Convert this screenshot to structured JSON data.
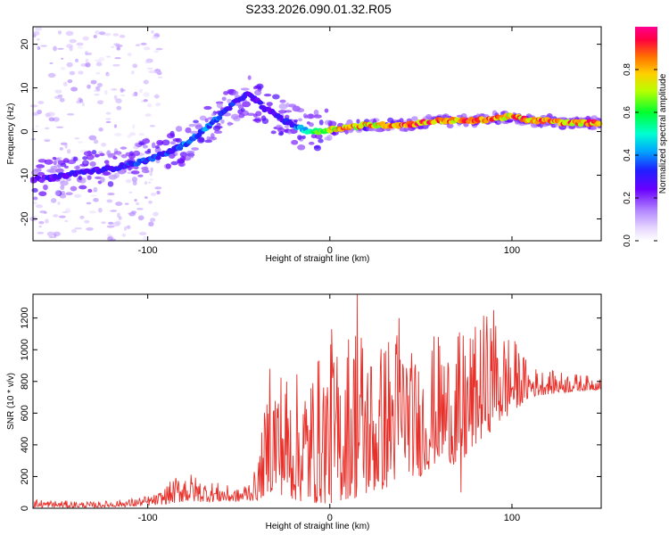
{
  "title": "S233.2026.090.01.32.R05",
  "chart_data": [
    {
      "type": "heatmap",
      "title": "S233.2026.090.01.32.R05",
      "xlabel": "Height of straight line (km)",
      "ylabel": "Frequency (Hz)",
      "xlim": [
        -163,
        149
      ],
      "ylim": [
        -25,
        24
      ],
      "x_ticks": [
        -100,
        0,
        100
      ],
      "y_ticks": [
        -20,
        -10,
        0,
        10,
        20
      ],
      "colorbar": {
        "label": "Normalized spectral amplitude",
        "range": [
          0.0,
          1.0
        ],
        "ticks": [
          0.0,
          0.2,
          0.4,
          0.6,
          0.8
        ],
        "tick_labels": [
          "0.0",
          "0.2",
          "0.4",
          "0.6",
          "0.8"
        ]
      },
      "ridge": {
        "x": [
          -163,
          -150,
          -140,
          -130,
          -120,
          -110,
          -100,
          -90,
          -80,
          -70,
          -62,
          -55,
          -50,
          -45,
          -40,
          -35,
          -30,
          -25,
          -20,
          -15,
          -10,
          -5,
          0,
          10,
          20,
          30,
          40,
          50,
          60,
          70,
          80,
          90,
          100,
          110,
          120,
          130,
          140,
          149
        ],
        "y": [
          -11,
          -10.5,
          -9.5,
          -9,
          -8.5,
          -7.5,
          -6.5,
          -5,
          -3,
          0,
          3,
          5.5,
          7.5,
          8.5,
          7,
          5,
          4,
          2.5,
          1.5,
          0.5,
          0,
          0,
          0.5,
          1,
          1.5,
          1.5,
          1.5,
          2,
          2.5,
          2.5,
          2.5,
          3,
          3.5,
          2.5,
          2.5,
          2,
          2,
          2
        ],
        "amplitude": [
          0.25,
          0.3,
          0.3,
          0.3,
          0.3,
          0.35,
          0.35,
          0.35,
          0.4,
          0.4,
          0.4,
          0.35,
          0.3,
          0.3,
          0.3,
          0.3,
          0.3,
          0.3,
          0.35,
          0.5,
          0.6,
          0.7,
          0.8,
          0.85,
          0.85,
          0.85,
          0.9,
          0.9,
          0.9,
          0.9,
          0.9,
          0.9,
          0.85,
          0.9,
          0.9,
          0.9,
          0.9,
          0.9
        ]
      }
    },
    {
      "type": "line",
      "xlabel": "Height of straight line (km)",
      "ylabel": "SNR (10 * v/v)",
      "xlim": [
        -163,
        149
      ],
      "ylim": [
        0,
        1350
      ],
      "x_ticks": [
        -100,
        0,
        100
      ],
      "y_ticks": [
        0,
        200,
        400,
        600,
        800,
        1000,
        1200
      ],
      "color": "#e8302a",
      "envelope": {
        "x": [
          -163,
          -150,
          -130,
          -110,
          -95,
          -80,
          -70,
          -60,
          -50,
          -40,
          -35,
          -30,
          -20,
          -10,
          -5,
          0,
          5,
          10,
          15,
          20,
          25,
          30,
          35,
          40,
          45,
          50,
          55,
          60,
          65,
          70,
          75,
          80,
          85,
          90,
          95,
          100,
          105,
          110,
          120,
          130,
          140,
          149
        ],
        "low": [
          5,
          5,
          5,
          10,
          20,
          40,
          40,
          40,
          40,
          50,
          80,
          100,
          50,
          30,
          30,
          30,
          40,
          60,
          60,
          80,
          100,
          120,
          150,
          300,
          200,
          200,
          250,
          300,
          300,
          250,
          300,
          400,
          450,
          500,
          550,
          600,
          650,
          700,
          720,
          730,
          740,
          750
        ],
        "high": [
          60,
          50,
          40,
          60,
          90,
          250,
          180,
          160,
          120,
          250,
          700,
          950,
          850,
          900,
          1000,
          1050,
          1000,
          1150,
          1300,
          1100,
          1000,
          1100,
          1200,
          1150,
          1000,
          950,
          1100,
          1100,
          1050,
          1100,
          1150,
          1150,
          1250,
          1200,
          1150,
          1100,
          1000,
          900,
          870,
          860,
          840,
          830
        ]
      },
      "spikes": [
        {
          "x": -33,
          "y": 880
        },
        {
          "x": 1,
          "y": 1130
        },
        {
          "x": 15,
          "y": 1350
        },
        {
          "x": 38,
          "y": 1200
        },
        {
          "x": 90,
          "y": 1250
        },
        {
          "x": 72,
          "y": 100
        }
      ]
    }
  ]
}
